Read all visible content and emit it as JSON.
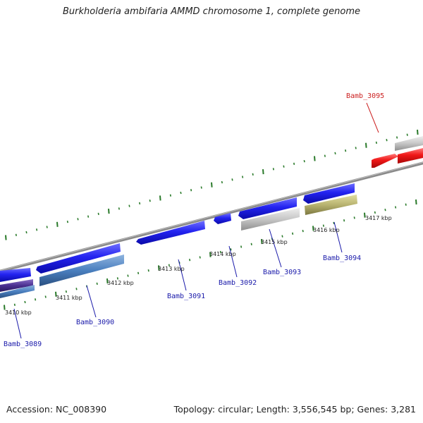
{
  "title": "Burkholderia ambifaria AMMD chromosome 1, complete genome",
  "footer": {
    "accession": "Accession: NC_008390",
    "topology": "Topology: circular; Length: 3,556,545 bp; Genes: 3,281"
  },
  "colors": {
    "backbone": "#8a8a8a",
    "tick": "#2a7a2a",
    "gene_selected": "#ee1111",
    "gene_forward": "#1a1aee",
    "gene_other": "#c8c8c8",
    "gene_rna": "#4a7fbf",
    "gene_olive": "#b8b370",
    "label_default": "#1a1aaa",
    "label_selected": "#cc2222"
  },
  "kbp_labels": [
    {
      "text": "3410 kbp"
    },
    {
      "text": "3411 kbp"
    },
    {
      "text": "3412 kbp"
    },
    {
      "text": "3413 kbp"
    },
    {
      "text": "3414 kbp"
    },
    {
      "text": "3415 kbp"
    },
    {
      "text": "3416 kbp"
    },
    {
      "text": "3417 kbp"
    }
  ],
  "gene_labels": [
    {
      "text": "Bamb_3095",
      "selected": true
    },
    {
      "text": "Bamb_3094",
      "selected": false
    },
    {
      "text": "Bamb_3093",
      "selected": false
    },
    {
      "text": "Bamb_3092",
      "selected": false
    },
    {
      "text": "Bamb_3091",
      "selected": false
    },
    {
      "text": "Bamb_3090",
      "selected": false
    },
    {
      "text": "Bamb_3089",
      "selected": false
    }
  ]
}
